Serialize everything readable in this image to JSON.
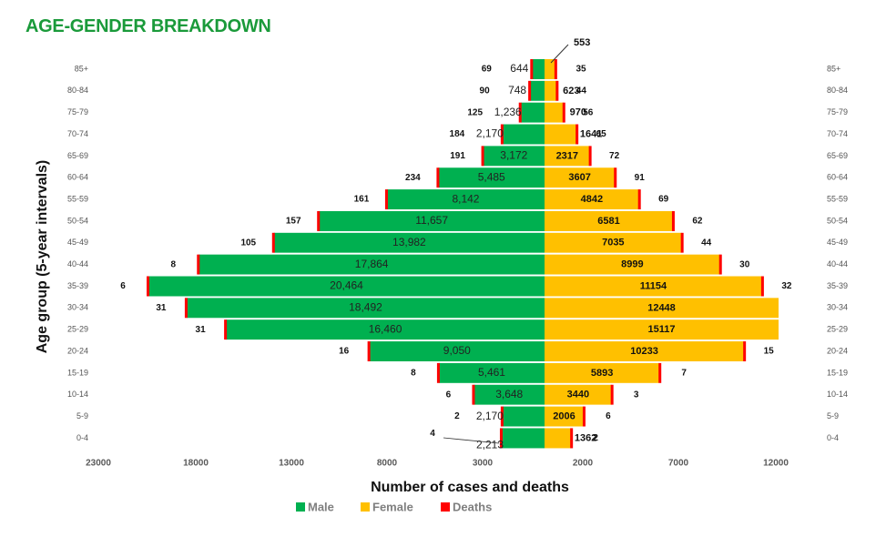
{
  "title": "AGE-GENDER BREAKDOWN",
  "colors": {
    "male": "#00b050",
    "female": "#ffc000",
    "deaths": "#ff0000",
    "title": "#1a9a3a"
  },
  "chart_data": {
    "type": "bar",
    "orientation": "horizontal",
    "categories": [
      "85+",
      "80-84",
      "75-79",
      "70-74",
      "65-69",
      "60-64",
      "55-59",
      "50-54",
      "45-49",
      "40-44",
      "35-39",
      "30-34",
      "25-29",
      "20-24",
      "15-19",
      "10-14",
      "5-9",
      "0-4"
    ],
    "series": [
      {
        "name": "Male",
        "values": [
          644,
          748,
          1236,
          2170,
          3172,
          5485,
          8142,
          11657,
          13982,
          17864,
          20464,
          18492,
          16460,
          9050,
          5461,
          3648,
          2170,
          2213
        ],
        "labels": [
          "644",
          "748",
          "1,236",
          "2,170",
          "3,172",
          "5,485",
          "8,142",
          "11,657",
          "13,982",
          "17,864",
          "20,464",
          "18,492",
          "16,460",
          "9,050",
          "5,461",
          "3,648",
          "2,170",
          "2,213"
        ]
      },
      {
        "name": "Female",
        "values": [
          553,
          623,
          970,
          1641,
          2317,
          3607,
          4842,
          6581,
          7035,
          8999,
          11154,
          12448,
          15117,
          10233,
          5893,
          3440,
          2006,
          1362
        ],
        "labels": [
          "553",
          "623",
          "970",
          "1641",
          "2317",
          "3607",
          "4842",
          "6581",
          "7035",
          "8999",
          "11154",
          "12448",
          "15117",
          "10233",
          "5893",
          "3440",
          "2006",
          "1362"
        ]
      },
      {
        "name": "Deaths",
        "male_values": [
          69,
          90,
          125,
          184,
          191,
          234,
          161,
          157,
          105,
          8,
          6,
          31,
          31,
          16,
          8,
          6,
          2,
          4
        ],
        "female_values": [
          35,
          44,
          56,
          65,
          72,
          91,
          69,
          62,
          44,
          30,
          32,
          0,
          0,
          15,
          7,
          3,
          6,
          2
        ]
      }
    ],
    "x_ticks": [
      "23000",
      "18000",
      "13000",
      "8000",
      "3000",
      "2000",
      "7000",
      "12000"
    ],
    "xlabel": "Number of  cases and deaths",
    "ylabel": "Age group (5-year intervals)",
    "legend": [
      "Male",
      "Female",
      "Deaths"
    ],
    "legend_position": "bottom",
    "female_axis_max": 12000
  }
}
